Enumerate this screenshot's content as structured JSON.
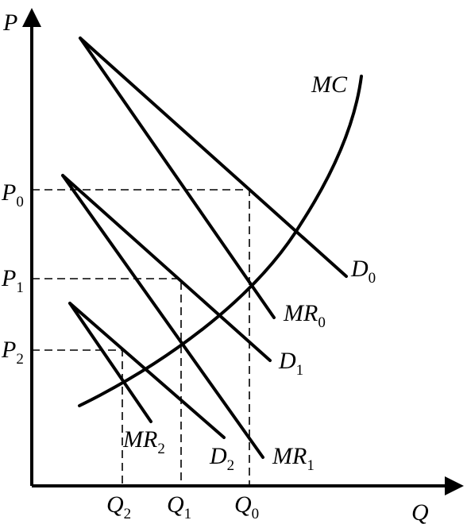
{
  "axes": {
    "y_label": "P",
    "x_label": "Q"
  },
  "price_labels": [
    {
      "letter": "P",
      "sub": "0"
    },
    {
      "letter": "P",
      "sub": "1"
    },
    {
      "letter": "P",
      "sub": "2"
    }
  ],
  "quantity_labels": [
    {
      "letter": "Q",
      "sub": "2"
    },
    {
      "letter": "Q",
      "sub": "1"
    },
    {
      "letter": "Q",
      "sub": "0"
    }
  ],
  "curves": {
    "mc": {
      "letter": "MC",
      "sub": ""
    },
    "d0": {
      "letter": "D",
      "sub": "0"
    },
    "mr0": {
      "letter": "MR",
      "sub": "0"
    },
    "d1": {
      "letter": "D",
      "sub": "1"
    },
    "mr1": {
      "letter": "MR",
      "sub": "1"
    },
    "d2": {
      "letter": "D",
      "sub": "2"
    },
    "mr2": {
      "letter": "MR",
      "sub": "2"
    }
  }
}
